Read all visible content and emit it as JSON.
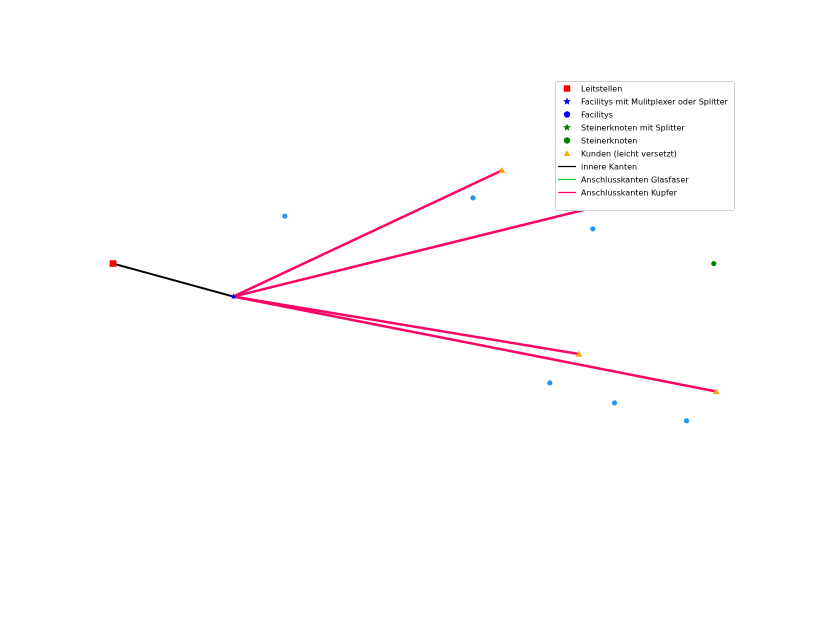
{
  "chart_data": {
    "type": "scatter",
    "title": "",
    "xlabel": "",
    "ylabel": "",
    "axes_visible": false,
    "grid": false,
    "legend_position": "top-right",
    "xlim": [
      0,
      1
    ],
    "ylim": [
      0,
      1
    ],
    "colors": {
      "leitstelle": "#ff0000",
      "facility_splitter": "#0000ff",
      "facility": "#0000ff",
      "steiner_splitter": "#008000",
      "steiner": "#008000",
      "kunde": "#ffa500",
      "inner_edge": "#000000",
      "glasfaser_edge": "#32cd32",
      "kupfer_edge": "#ff0066",
      "plain_point": "#2196f3"
    },
    "legend": [
      {
        "label": "Leitstellen",
        "marker": "square",
        "color": "#ff0000"
      },
      {
        "label": "Facilitys mit Mulitplexer oder Splitter",
        "marker": "star",
        "color": "#0000ff"
      },
      {
        "label": "Facilitys",
        "marker": "circle",
        "color": "#0000ff"
      },
      {
        "label": "Steinerknoten mit Splitter",
        "marker": "star",
        "color": "#008000"
      },
      {
        "label": "Steinerknoten",
        "marker": "circle",
        "color": "#008000"
      },
      {
        "label": "Kunden (leicht versetzt)",
        "marker": "triangle",
        "color": "#ffa500"
      },
      {
        "label": "innere Kanten",
        "marker": "line",
        "color": "#000000"
      },
      {
        "label": "Anschlusskanten Glasfaser",
        "marker": "line",
        "color": "#32cd32"
      },
      {
        "label": "Anschlusskanten Kupfer",
        "marker": "line",
        "color": "#ff0066"
      }
    ],
    "leitstellen": [
      {
        "x": 0.0,
        "y": 0.574
      }
    ],
    "facilitys_splitter": [
      {
        "x": 0.199,
        "y": 0.478
      }
    ],
    "facilitys": [],
    "steinerknoten_splitter": [],
    "steinerknoten": [
      {
        "x": 0.993,
        "y": 0.574
      }
    ],
    "kunden": [
      {
        "x": 0.643,
        "y": 0.845
      },
      {
        "x": 0.841,
        "y": 0.757
      },
      {
        "x": 0.77,
        "y": 0.311
      },
      {
        "x": 0.997,
        "y": 0.202
      }
    ],
    "other_points": [
      {
        "x": 0.284,
        "y": 0.712
      },
      {
        "x": 0.595,
        "y": 0.765
      },
      {
        "x": 0.793,
        "y": 0.675
      },
      {
        "x": 0.722,
        "y": 0.227
      },
      {
        "x": 0.829,
        "y": 0.169
      },
      {
        "x": 0.948,
        "y": 0.117
      }
    ],
    "inner_edges": [
      {
        "from": {
          "x": 0.0,
          "y": 0.574
        },
        "to": {
          "x": 0.199,
          "y": 0.478
        }
      }
    ],
    "kupfer_edges": [
      {
        "from": {
          "x": 0.199,
          "y": 0.478
        },
        "to": {
          "x": 0.643,
          "y": 0.845
        }
      },
      {
        "from": {
          "x": 0.199,
          "y": 0.478
        },
        "to": {
          "x": 0.841,
          "y": 0.757
        }
      },
      {
        "from": {
          "x": 0.199,
          "y": 0.478
        },
        "to": {
          "x": 0.77,
          "y": 0.311
        }
      },
      {
        "from": {
          "x": 0.199,
          "y": 0.478
        },
        "to": {
          "x": 0.997,
          "y": 0.202
        }
      }
    ],
    "glasfaser_edges": []
  }
}
